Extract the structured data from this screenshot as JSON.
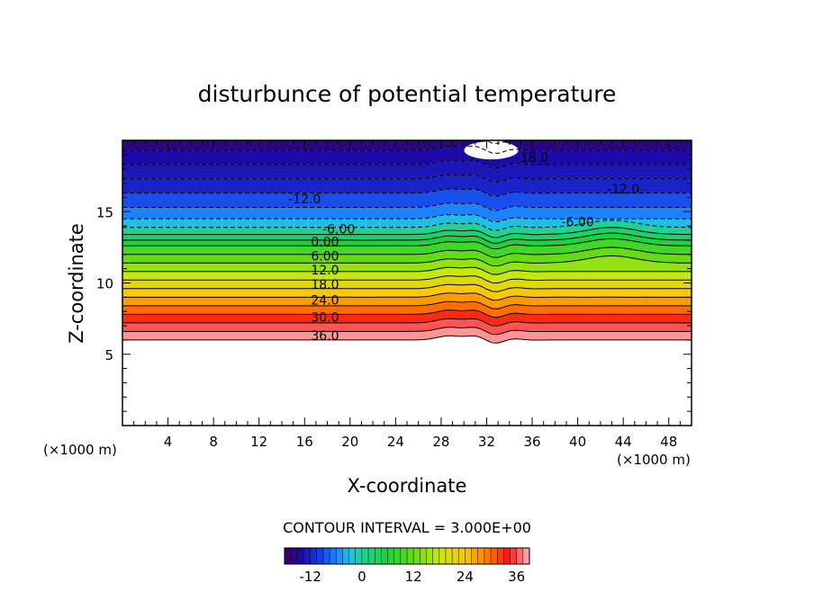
{
  "chart_data": {
    "type": "heatmap",
    "title": "disturbunce of potential temperature",
    "xlabel": "X-coordinate",
    "ylabel": "Z-coordinate",
    "x_unit_left": "(×1000 m)",
    "x_unit_right": "(×1000 m)",
    "xlim": [
      0,
      50
    ],
    "ylim": [
      0,
      20
    ],
    "x_ticks": [
      "4",
      "8",
      "12",
      "16",
      "20",
      "24",
      "28",
      "32",
      "36",
      "40",
      "44",
      "48"
    ],
    "y_ticks": [
      "5",
      "10",
      "15"
    ],
    "contour_interval_text": "CONTOUR INTERVAL = 3.000E+00",
    "contour_labels": [
      {
        "text": "-6.00",
        "x": 19,
        "y": 13.8
      },
      {
        "text": "0.00",
        "x": 17.8,
        "y": 12.9
      },
      {
        "text": "6.00",
        "x": 17.8,
        "y": 11.9
      },
      {
        "text": "12.0",
        "x": 17.8,
        "y": 10.9
      },
      {
        "text": "18.0",
        "x": 17.8,
        "y": 9.9
      },
      {
        "text": "24.0",
        "x": 17.8,
        "y": 8.8
      },
      {
        "text": "30.0",
        "x": 17.8,
        "y": 7.6
      },
      {
        "text": "36.0",
        "x": 17.8,
        "y": 6.3
      },
      {
        "text": "-12.0",
        "x": 16,
        "y": 15.9
      },
      {
        "text": "-12.0",
        "x": 44,
        "y": 16.6
      },
      {
        "text": "-6.00",
        "x": 40,
        "y": 14.3
      },
      {
        "text": "-18.0",
        "x": 36,
        "y": 18.8
      }
    ],
    "colorbar": {
      "range": [
        -18,
        39
      ],
      "tick_labels": [
        "-12",
        "0",
        "12",
        "24",
        "36"
      ],
      "tick_values": [
        -12,
        0,
        12,
        24,
        36
      ]
    },
    "field_bands": [
      {
        "z": 6.0,
        "value": 38
      },
      {
        "z": 6.6,
        "value": 36
      },
      {
        "z": 7.2,
        "value": 33
      },
      {
        "z": 7.8,
        "value": 30
      },
      {
        "z": 8.4,
        "value": 27
      },
      {
        "z": 9.0,
        "value": 24
      },
      {
        "z": 9.6,
        "value": 21
      },
      {
        "z": 10.2,
        "value": 18
      },
      {
        "z": 10.8,
        "value": 15
      },
      {
        "z": 11.4,
        "value": 12
      },
      {
        "z": 12.0,
        "value": 9
      },
      {
        "z": 12.6,
        "value": 6
      },
      {
        "z": 13.0,
        "value": 3
      },
      {
        "z": 13.4,
        "value": 0
      },
      {
        "z": 13.9,
        "value": -3
      },
      {
        "z": 14.5,
        "value": -6
      },
      {
        "z": 15.3,
        "value": -9
      },
      {
        "z": 16.3,
        "value": -12
      },
      {
        "z": 17.3,
        "value": -13
      },
      {
        "z": 18.3,
        "value": -14
      },
      {
        "z": 19.3,
        "value": -16
      },
      {
        "z": 20.0,
        "value": -18
      }
    ]
  }
}
